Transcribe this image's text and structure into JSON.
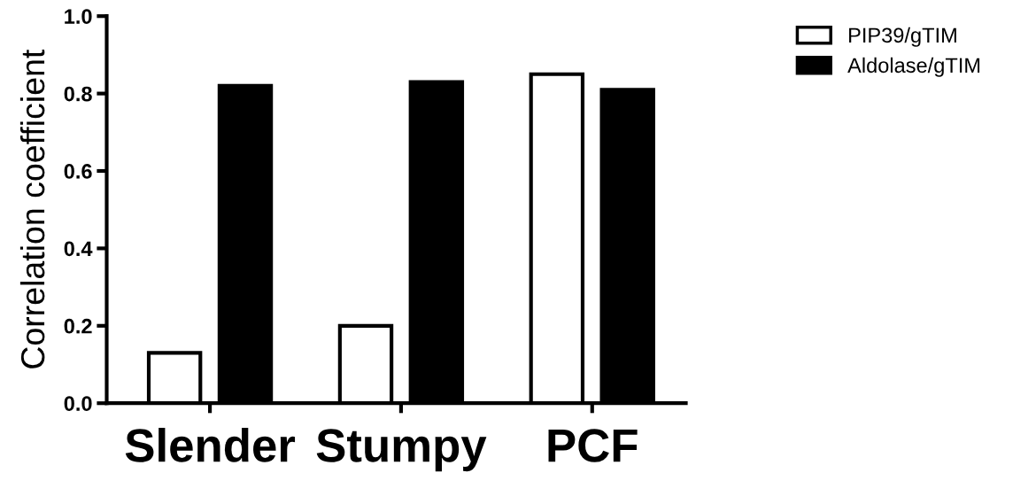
{
  "chart_data": {
    "type": "bar",
    "ylabel": "Correlation coefficient",
    "categories": [
      "Slender",
      "Stumpy",
      "PCF"
    ],
    "series": [
      {
        "name": "PIP39/gTIM",
        "color": "#ffffff",
        "values": [
          0.13,
          0.2,
          0.85
        ]
      },
      {
        "name": "Aldolase/gTIM",
        "color": "#000000",
        "values": [
          0.82,
          0.83,
          0.81
        ]
      }
    ],
    "ylim": [
      0,
      1.0
    ],
    "yticks": [
      {
        "value": 0,
        "label": "0.0"
      },
      0.2,
      0.4,
      0.6,
      0.8,
      {
        "value": 1.0,
        "label": "1.0"
      }
    ],
    "grid": false,
    "legend": "top right"
  }
}
